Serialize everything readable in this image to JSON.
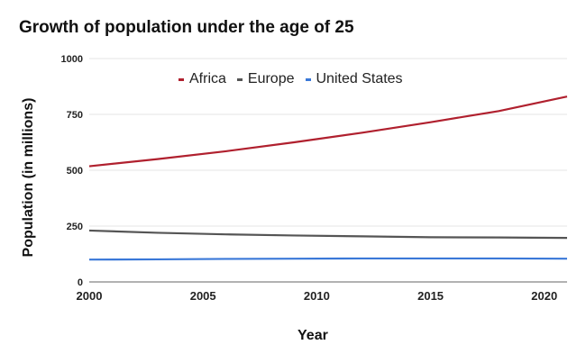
{
  "chart_data": {
    "type": "line",
    "title": "Growth of population under the age of 25",
    "xlabel": "Year",
    "ylabel": "Population (in millions)",
    "ylim": [
      0,
      1000
    ],
    "xlim": [
      2000,
      2021
    ],
    "yticks": [
      "0",
      "250",
      "500",
      "750",
      "1000"
    ],
    "xticks": [
      "2000",
      "2005",
      "2010",
      "2015",
      "2020"
    ],
    "grid": true,
    "legend_position": "top",
    "x": [
      2000,
      2003,
      2006,
      2009,
      2012,
      2015,
      2018,
      2021
    ],
    "series": [
      {
        "name": "Africa",
        "color": "#b0202e",
        "values": [
          518,
          550,
          585,
          625,
          668,
          715,
          765,
          830
        ]
      },
      {
        "name": "Europe",
        "color": "#555555",
        "values": [
          230,
          220,
          213,
          208,
          204,
          200,
          199,
          197
        ]
      },
      {
        "name": "United States",
        "color": "#3a78d8",
        "values": [
          100,
          101,
          103,
          104,
          105,
          105,
          105,
          104
        ]
      }
    ]
  }
}
